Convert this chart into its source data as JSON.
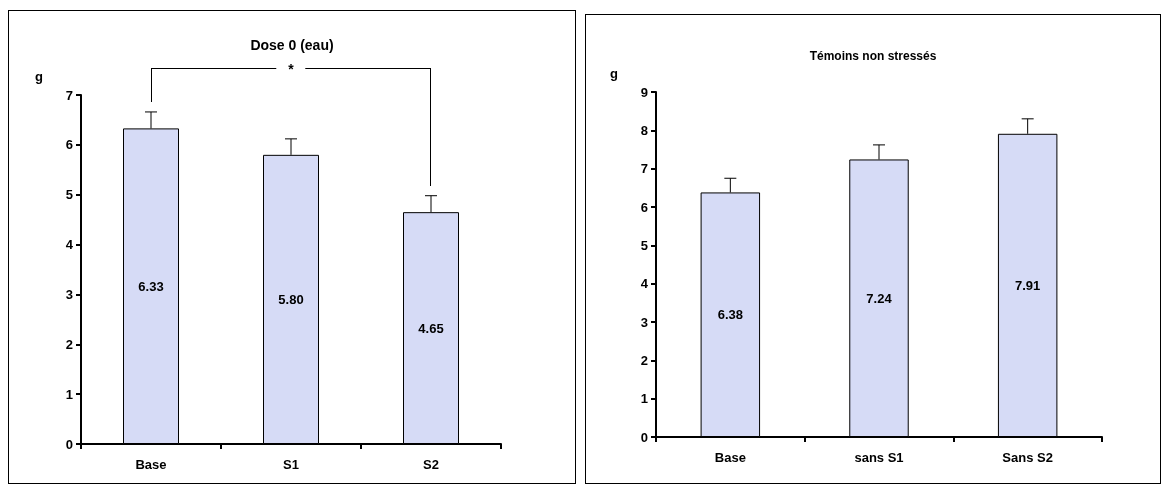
{
  "chart_data": [
    {
      "type": "bar",
      "title": "Dose 0 (eau)",
      "ylabel": "g",
      "categories": [
        "Base",
        "S1",
        "S2"
      ],
      "values": [
        6.33,
        5.8,
        4.65
      ],
      "color": "#d6dbf6",
      "errors": [
        [
          6.33,
          6.66
        ],
        [
          5.8,
          6.12
        ],
        [
          4.65,
          4.98
        ]
      ],
      "value_labels": [
        "6.33",
        "5.80",
        "4.65"
      ],
      "ylim": [
        0,
        7
      ],
      "yticks": [
        0,
        1,
        2,
        3,
        4,
        5,
        6,
        7
      ],
      "grid": false,
      "annotations": [
        "*"
      ]
    },
    {
      "type": "bar",
      "title": "Témoins non stressés",
      "ylabel": "g",
      "categories": [
        "Base",
        "sans S1",
        "Sans S2"
      ],
      "values": [
        6.38,
        7.24,
        7.91
      ],
      "color": "#d6dbf6",
      "errors": [
        [
          6.38,
          6.75
        ],
        [
          7.24,
          7.62
        ],
        [
          7.91,
          8.3
        ]
      ],
      "value_labels": [
        "6.38",
        "7.24",
        "7.91"
      ],
      "ylim": [
        0,
        9
      ],
      "yticks": [
        0,
        1,
        2,
        3,
        4,
        5,
        6,
        7,
        8,
        9
      ],
      "grid": false
    }
  ]
}
